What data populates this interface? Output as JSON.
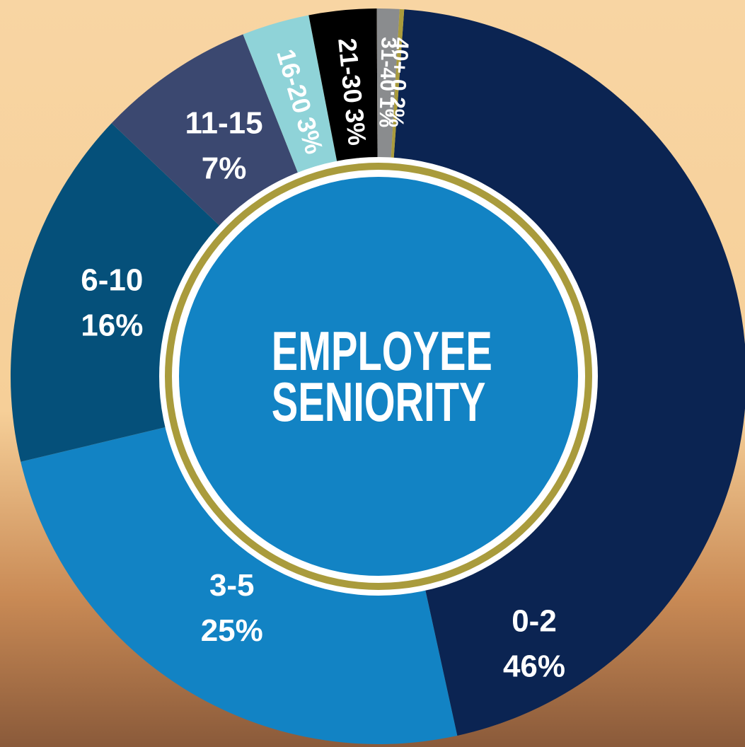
{
  "chart_data": {
    "type": "donut",
    "title": "EMPLOYEE SENIORITY",
    "categories": [
      "0-2",
      "3-5",
      "6-10",
      "11-15",
      "16-20",
      "21-30",
      "31-40",
      "40+"
    ],
    "values": [
      46,
      25,
      16,
      7,
      3,
      3,
      1,
      0.2
    ],
    "value_labels": [
      "46%",
      "25%",
      "16%",
      "7%",
      "3%",
      "3%",
      "1%",
      "0.2%"
    ],
    "colors": [
      "#0b2452",
      "#1283c4",
      "#05507a",
      "#3b4870",
      "#8fd3d8",
      "#000000",
      "#8a8c8e",
      "#a99b3c"
    ]
  }
}
